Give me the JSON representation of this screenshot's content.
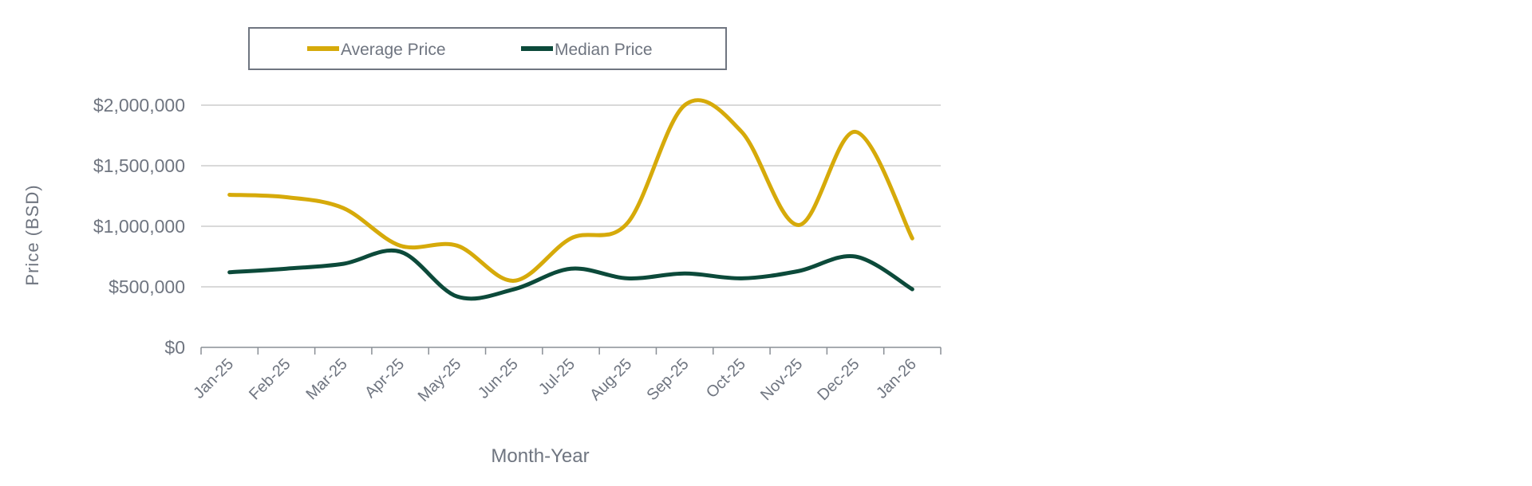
{
  "chart_data": {
    "type": "line",
    "title": "",
    "xlabel": "Month-Year",
    "ylabel": "Price (BSD)",
    "ylim": [
      0,
      2000000
    ],
    "yticks": [
      0,
      500000,
      1000000,
      1500000,
      2000000
    ],
    "ytick_labels": [
      "$0",
      "$500,000",
      "$1,000,000",
      "$1,500,000",
      "$2,000,000"
    ],
    "grid": true,
    "legend_position": "top",
    "categories": [
      "Jan-25",
      "Feb-25",
      "Mar-25",
      "Apr-25",
      "May-25",
      "Jun-25",
      "Jul-25",
      "Aug-25",
      "Sep-25",
      "Oct-25",
      "Nov-25",
      "Dec-25",
      "Jan-26"
    ],
    "series": [
      {
        "name": "Average Price",
        "color": "#d6aa0a",
        "values": [
          1260000,
          1240000,
          1150000,
          840000,
          840000,
          550000,
          900000,
          1030000,
          2000000,
          1780000,
          1010000,
          1780000,
          900000
        ]
      },
      {
        "name": "Median Price",
        "color": "#0c4a3a",
        "values": [
          620000,
          650000,
          690000,
          790000,
          420000,
          480000,
          650000,
          570000,
          610000,
          570000,
          630000,
          750000,
          480000
        ]
      }
    ]
  }
}
